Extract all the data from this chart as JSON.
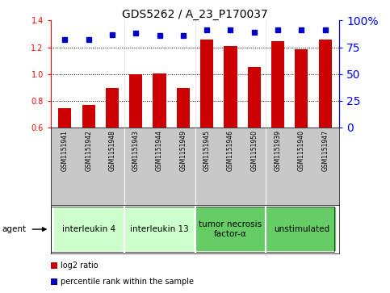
{
  "title": "GDS5262 / A_23_P170037",
  "samples": [
    "GSM1151941",
    "GSM1151942",
    "GSM1151948",
    "GSM1151943",
    "GSM1151944",
    "GSM1151949",
    "GSM1151945",
    "GSM1151946",
    "GSM1151950",
    "GSM1151939",
    "GSM1151940",
    "GSM1151947"
  ],
  "log2_ratio": [
    0.745,
    0.77,
    0.895,
    1.0,
    1.005,
    0.895,
    1.26,
    1.21,
    1.055,
    1.245,
    1.185,
    1.26
  ],
  "percentile": [
    82,
    82,
    87,
    88,
    86,
    86,
    91,
    91,
    89,
    91,
    91,
    91
  ],
  "ylim_left": [
    0.6,
    1.4
  ],
  "ylim_right": [
    0,
    100
  ],
  "yticks_left": [
    0.6,
    0.8,
    1.0,
    1.2,
    1.4
  ],
  "yticks_right": [
    0,
    25,
    50,
    75,
    100
  ],
  "ytick_labels_right": [
    "0",
    "25",
    "50",
    "75",
    "100%"
  ],
  "bar_color": "#cc0000",
  "dot_color": "#0000cc",
  "groups": [
    {
      "label": "interleukin 4",
      "start": 0,
      "end": 3,
      "color": "#ccffcc"
    },
    {
      "label": "interleukin 13",
      "start": 3,
      "end": 6,
      "color": "#ccffcc"
    },
    {
      "label": "tumor necrosis\nfactor-α",
      "start": 6,
      "end": 9,
      "color": "#66cc66"
    },
    {
      "label": "unstimulated",
      "start": 9,
      "end": 12,
      "color": "#66cc66"
    }
  ],
  "legend_bar_label": "log2 ratio",
  "legend_dot_label": "percentile rank within the sample",
  "agent_label": "agent",
  "bar_bottom": 0.6,
  "title_fontsize": 10,
  "tick_fontsize": 7,
  "sample_fontsize": 5.5,
  "group_fontsize": 7.5,
  "legend_fontsize": 7
}
